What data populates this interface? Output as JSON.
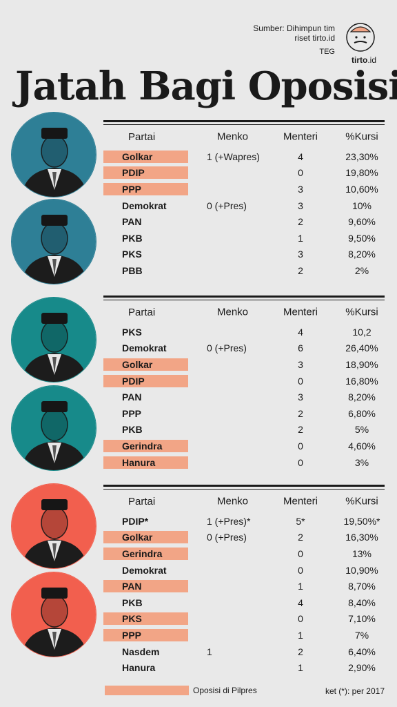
{
  "source": {
    "line1": "Sumber: Dihimpun tim",
    "line2": "riset tirto.id",
    "by": "TEG"
  },
  "brand": {
    "name": "tirto",
    "suffix": ".id"
  },
  "title": "Jatah Bagi Oposisi",
  "headers": {
    "party": "Partai",
    "menko": "Menko",
    "menteri": "Menteri",
    "kursi": "%Kursi"
  },
  "colors": {
    "opposition": "#f2a586",
    "panel1": "#2e7f96",
    "panel2": "#178a8a",
    "panel3": "#f25f4e"
  },
  "sections": [
    {
      "rows": [
        {
          "party": "Golkar",
          "menko": "1 (+Wapres)",
          "menteri": "4",
          "kursi": "23,30%",
          "opp": true
        },
        {
          "party": "PDIP",
          "menko": "",
          "menteri": "0",
          "kursi": "19,80%",
          "opp": true
        },
        {
          "party": "PPP",
          "menko": "",
          "menteri": "3",
          "kursi": "10,60%",
          "opp": true
        },
        {
          "party": "Demokrat",
          "menko": "0 (+Pres)",
          "menteri": "3",
          "kursi": "10%",
          "opp": false
        },
        {
          "party": "PAN",
          "menko": "",
          "menteri": "2",
          "kursi": "9,60%",
          "opp": false
        },
        {
          "party": "PKB",
          "menko": "",
          "menteri": "1",
          "kursi": "9,50%",
          "opp": false
        },
        {
          "party": "PKS",
          "menko": "",
          "menteri": "3",
          "kursi": "8,20%",
          "opp": false
        },
        {
          "party": "PBB",
          "menko": "",
          "menteri": "2",
          "kursi": "2%",
          "opp": false
        }
      ]
    },
    {
      "rows": [
        {
          "party": "PKS",
          "menko": "",
          "menteri": "4",
          "kursi": "10,2",
          "opp": false
        },
        {
          "party": "Demokrat",
          "menko": "0 (+Pres)",
          "menteri": "6",
          "kursi": "26,40%",
          "opp": false
        },
        {
          "party": "Golkar",
          "menko": "",
          "menteri": "3",
          "kursi": "18,90%",
          "opp": true
        },
        {
          "party": "PDIP",
          "menko": "",
          "menteri": "0",
          "kursi": "16,80%",
          "opp": true
        },
        {
          "party": "PAN",
          "menko": "",
          "menteri": "3",
          "kursi": "8,20%",
          "opp": false
        },
        {
          "party": "PPP",
          "menko": "",
          "menteri": "2",
          "kursi": "6,80%",
          "opp": false
        },
        {
          "party": "PKB",
          "menko": "",
          "menteri": "2",
          "kursi": "5%",
          "opp": false
        },
        {
          "party": "Gerindra",
          "menko": "",
          "menteri": "0",
          "kursi": "4,60%",
          "opp": true
        },
        {
          "party": "Hanura",
          "menko": "",
          "menteri": "0",
          "kursi": "3%",
          "opp": true
        }
      ]
    },
    {
      "rows": [
        {
          "party": "PDIP*",
          "menko": "1 (+Pres)*",
          "menteri": "5*",
          "kursi": "19,50%*",
          "opp": false
        },
        {
          "party": "Golkar",
          "menko": "0 (+Pres)",
          "menteri": "2",
          "kursi": "16,30%",
          "opp": true
        },
        {
          "party": "Gerindra",
          "menko": "",
          "menteri": "0",
          "kursi": "13%",
          "opp": true
        },
        {
          "party": "Demokrat",
          "menko": "",
          "menteri": "0",
          "kursi": "10,90%",
          "opp": false
        },
        {
          "party": "PAN",
          "menko": "",
          "menteri": "1",
          "kursi": "8,70%",
          "opp": true
        },
        {
          "party": "PKB",
          "menko": "",
          "menteri": "4",
          "kursi": "8,40%",
          "opp": false
        },
        {
          "party": "PKS",
          "menko": "",
          "menteri": "0",
          "kursi": "7,10%",
          "opp": true
        },
        {
          "party": "PPP",
          "menko": "",
          "menteri": "1",
          "kursi": "7%",
          "opp": true
        },
        {
          "party": "Nasdem",
          "menko": "1",
          "menteri": "2",
          "kursi": "6,40%",
          "opp": false
        },
        {
          "party": "Hanura",
          "menko": "",
          "menteri": "1",
          "kursi": "2,90%",
          "opp": false
        }
      ]
    }
  ],
  "legend": "Oposisi di Pilpres",
  "note": "ket (*): per 2017"
}
